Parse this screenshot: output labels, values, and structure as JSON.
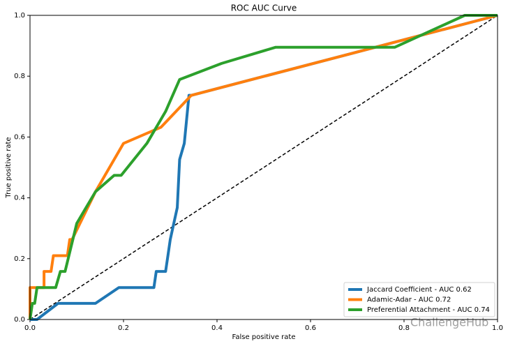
{
  "chart_data": {
    "type": "line",
    "title": "ROC AUC Curve",
    "x_label": "False positive rate",
    "y_label": "True positive rate",
    "xlim": [
      0,
      1
    ],
    "ylim": [
      0,
      1
    ],
    "xticks": [
      {
        "value": 0,
        "label": "0.0"
      },
      0.2,
      0.4,
      0.6,
      0.8,
      {
        "value": 1,
        "label": "1.0"
      }
    ],
    "yticks": [
      {
        "value": 0,
        "label": "0.0"
      },
      0.2,
      0.4,
      0.6,
      0.8,
      {
        "value": 1,
        "label": "1.0"
      }
    ],
    "legend": "lower right",
    "grid": false,
    "watermark": "ChallengeHub",
    "series": [
      {
        "name": "Jaccard Coefficient - AUC 0.62",
        "color": "#1f77b4",
        "x": [
          0,
          0.015,
          0.06,
          0.14,
          0.19,
          0.265,
          0.27,
          0.29,
          0.295,
          0.3,
          0.315,
          0.32,
          0.33,
          0.34,
          0.345,
          1
        ],
        "values": [
          0,
          0,
          0.053,
          0.053,
          0.105,
          0.105,
          0.158,
          0.158,
          0.21,
          0.263,
          0.368,
          0.526,
          0.579,
          0.737,
          0.737,
          1
        ]
      },
      {
        "name": "Adamic-Adar - AUC 0.72",
        "color": "#ff7f0e",
        "x": [
          0,
          0,
          0.03,
          0.03,
          0.045,
          0.05,
          0.08,
          0.085,
          0.09,
          0.14,
          0.18,
          0.2,
          0.28,
          0.345,
          1
        ],
        "values": [
          0,
          0.105,
          0.105,
          0.158,
          0.158,
          0.21,
          0.21,
          0.263,
          0.263,
          0.42,
          0.526,
          0.579,
          0.632,
          0.737,
          1
        ]
      },
      {
        "name": "Preferential Attachment - AUC 0.74",
        "color": "#2ca02c",
        "x": [
          0,
          0.005,
          0.01,
          0.015,
          0.055,
          0.065,
          0.075,
          0.1,
          0.12,
          0.14,
          0.18,
          0.195,
          0.25,
          0.29,
          0.32,
          0.41,
          0.525,
          0.78,
          0.93,
          1
        ],
        "values": [
          0,
          0.053,
          0.053,
          0.105,
          0.105,
          0.158,
          0.158,
          0.316,
          0.368,
          0.42,
          0.474,
          0.474,
          0.579,
          0.684,
          0.789,
          0.842,
          0.895,
          0.895,
          1,
          1
        ]
      }
    ]
  }
}
